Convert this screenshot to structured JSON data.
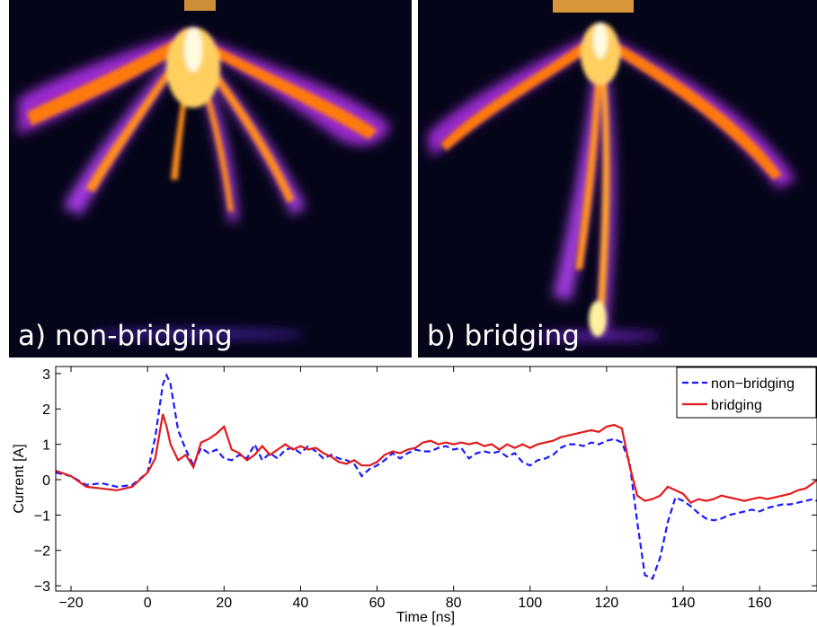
{
  "panels": [
    {
      "label": "a) non-bridging"
    },
    {
      "label": "b) bridging"
    }
  ],
  "colors": {
    "photo_background": "#05051a",
    "glow_outer": "#8a1cc0",
    "glow_mid": "#ff6a00",
    "glow_core": "#fff4a0",
    "non_bridging": "#1a1aff",
    "bridging": "#e31a1c"
  },
  "chart_data": {
    "type": "line",
    "title": "",
    "xlabel": "Time [ns]",
    "ylabel": "Current [A]",
    "xlim": [
      -24,
      175
    ],
    "ylim": [
      -3.15,
      3.2
    ],
    "xticks": [
      -20,
      0,
      20,
      40,
      60,
      80,
      100,
      120,
      140,
      160
    ],
    "yticks": [
      3,
      2,
      1,
      0,
      -1,
      -2,
      -3
    ],
    "grid": false,
    "legend_position": "top-right",
    "series": [
      {
        "name": "non−bridging",
        "style": "dashed",
        "color": "#1a1aff",
        "x": [
          -24,
          -20,
          -16,
          -12,
          -8,
          -4,
          0,
          2,
          4,
          5,
          6,
          8,
          10,
          12,
          14,
          16,
          18,
          20,
          22,
          24,
          26,
          28,
          30,
          32,
          34,
          36,
          38,
          40,
          42,
          44,
          46,
          48,
          50,
          52,
          54,
          56,
          58,
          60,
          62,
          64,
          66,
          68,
          70,
          72,
          74,
          76,
          78,
          80,
          82,
          84,
          86,
          88,
          90,
          92,
          94,
          96,
          98,
          100,
          102,
          104,
          106,
          108,
          110,
          112,
          114,
          116,
          118,
          120,
          122,
          124,
          126,
          128,
          130,
          132,
          134,
          136,
          138,
          140,
          142,
          144,
          146,
          148,
          150,
          152,
          154,
          156,
          158,
          160,
          162,
          164,
          166,
          168,
          170,
          172,
          174,
          175
        ],
        "y": [
          0.2,
          0.1,
          -0.15,
          -0.1,
          -0.2,
          -0.15,
          0.2,
          1.2,
          2.7,
          2.95,
          2.7,
          1.4,
          0.85,
          0.4,
          0.9,
          0.75,
          0.85,
          0.6,
          0.55,
          0.7,
          0.6,
          1.0,
          0.55,
          0.75,
          0.6,
          0.85,
          0.9,
          0.75,
          0.95,
          0.8,
          0.6,
          0.7,
          0.6,
          0.55,
          0.45,
          0.1,
          0.3,
          0.4,
          0.55,
          0.75,
          0.6,
          0.75,
          0.85,
          0.8,
          0.8,
          0.9,
          0.95,
          0.85,
          0.9,
          0.6,
          0.75,
          0.8,
          0.75,
          0.8,
          0.65,
          0.75,
          0.5,
          0.4,
          0.55,
          0.6,
          0.7,
          0.9,
          1.0,
          1.0,
          0.95,
          1.05,
          1.0,
          1.1,
          1.15,
          1.05,
          0.5,
          -1.2,
          -2.7,
          -2.8,
          -2.2,
          -1.2,
          -0.5,
          -0.6,
          -0.75,
          -0.95,
          -1.1,
          -1.15,
          -1.1,
          -1.0,
          -0.95,
          -0.9,
          -0.85,
          -0.9,
          -0.8,
          -0.75,
          -0.7,
          -0.7,
          -0.65,
          -0.6,
          -0.55,
          -0.6
        ]
      },
      {
        "name": "bridging",
        "style": "solid",
        "color": "#e31a1c",
        "x": [
          -24,
          -20,
          -16,
          -12,
          -8,
          -4,
          0,
          2,
          4,
          5,
          6,
          8,
          10,
          12,
          14,
          16,
          18,
          20,
          22,
          24,
          26,
          28,
          30,
          32,
          34,
          36,
          38,
          40,
          42,
          44,
          46,
          48,
          50,
          52,
          54,
          56,
          58,
          60,
          62,
          64,
          66,
          68,
          70,
          72,
          74,
          76,
          78,
          80,
          82,
          84,
          86,
          88,
          90,
          92,
          94,
          96,
          98,
          100,
          102,
          104,
          106,
          108,
          110,
          112,
          114,
          116,
          118,
          120,
          122,
          124,
          126,
          128,
          130,
          132,
          134,
          136,
          138,
          140,
          142,
          144,
          146,
          148,
          150,
          152,
          154,
          156,
          158,
          160,
          162,
          164,
          166,
          168,
          170,
          172,
          174,
          175
        ],
        "y": [
          0.25,
          0.1,
          -0.2,
          -0.25,
          -0.3,
          -0.2,
          0.2,
          0.6,
          1.85,
          1.5,
          1.0,
          0.55,
          0.7,
          0.35,
          1.05,
          1.15,
          1.3,
          1.5,
          0.85,
          0.75,
          0.55,
          0.7,
          0.95,
          0.7,
          0.85,
          1.0,
          0.85,
          0.95,
          0.85,
          0.9,
          0.75,
          0.65,
          0.5,
          0.45,
          0.55,
          0.4,
          0.4,
          0.5,
          0.7,
          0.8,
          0.75,
          0.85,
          0.9,
          1.05,
          1.1,
          1.0,
          1.05,
          1.0,
          1.05,
          1.0,
          1.05,
          0.95,
          1.0,
          0.85,
          1.0,
          0.9,
          1.0,
          0.9,
          1.0,
          1.05,
          1.1,
          1.2,
          1.25,
          1.3,
          1.35,
          1.4,
          1.35,
          1.5,
          1.55,
          1.45,
          0.4,
          -0.45,
          -0.6,
          -0.55,
          -0.45,
          -0.2,
          -0.3,
          -0.4,
          -0.65,
          -0.55,
          -0.6,
          -0.55,
          -0.45,
          -0.5,
          -0.55,
          -0.6,
          -0.55,
          -0.5,
          -0.55,
          -0.5,
          -0.45,
          -0.4,
          -0.3,
          -0.25,
          -0.1,
          0.0
        ]
      }
    ]
  }
}
